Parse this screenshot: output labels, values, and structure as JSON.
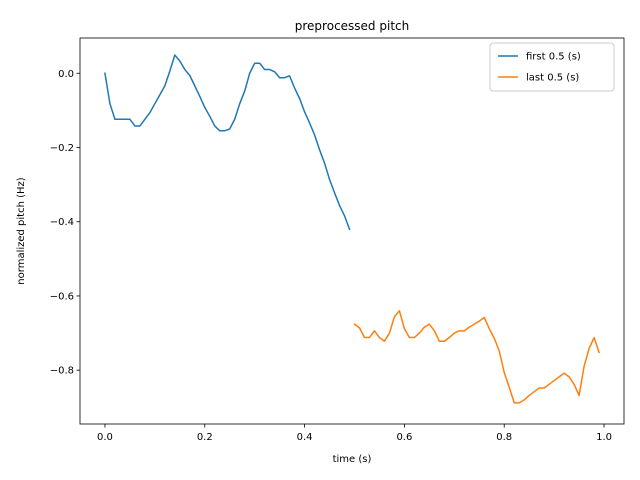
{
  "chart_data": {
    "type": "line",
    "title": "preprocessed pitch",
    "xlabel": "time (s)",
    "ylabel": "normalized pitch (Hz)",
    "xlim": [
      -0.05,
      1.04
    ],
    "ylim": [
      -0.945,
      0.095
    ],
    "xticks": [
      0.0,
      0.2,
      0.4,
      0.6,
      0.8,
      1.0
    ],
    "xtick_labels": [
      "0.0",
      "0.2",
      "0.4",
      "0.6",
      "0.8",
      "1.0"
    ],
    "yticks": [
      0.0,
      -0.2,
      -0.4,
      -0.6,
      -0.8
    ],
    "ytick_labels": [
      "0.0",
      "−0.2",
      "−0.4",
      "−0.6",
      "−0.8"
    ],
    "grid": false,
    "legend_position": "top-right",
    "series": [
      {
        "name": "first 0.5 (s)",
        "color": "#1f77b4",
        "x": [
          0.0,
          0.01,
          0.02,
          0.03,
          0.04,
          0.05,
          0.06,
          0.07,
          0.08,
          0.09,
          0.1,
          0.11,
          0.12,
          0.13,
          0.14,
          0.15,
          0.16,
          0.17,
          0.18,
          0.19,
          0.2,
          0.21,
          0.22,
          0.23,
          0.24,
          0.25,
          0.26,
          0.27,
          0.28,
          0.29,
          0.3,
          0.31,
          0.32,
          0.33,
          0.34,
          0.35,
          0.36,
          0.37,
          0.38,
          0.39,
          0.4,
          0.41,
          0.42,
          0.43,
          0.44,
          0.45,
          0.46,
          0.47,
          0.48,
          0.49
        ],
        "y": [
          0.0,
          -0.082,
          -0.124,
          -0.124,
          -0.124,
          -0.124,
          -0.142,
          -0.142,
          -0.124,
          -0.106,
          -0.082,
          -0.058,
          -0.034,
          0.006,
          0.049,
          0.033,
          0.01,
          -0.006,
          -0.034,
          -0.062,
          -0.092,
          -0.116,
          -0.142,
          -0.155,
          -0.155,
          -0.15,
          -0.124,
          -0.082,
          -0.048,
          0.0,
          0.027,
          0.027,
          0.01,
          0.01,
          0.004,
          -0.012,
          -0.012,
          -0.007,
          -0.04,
          -0.068,
          -0.104,
          -0.134,
          -0.166,
          -0.206,
          -0.242,
          -0.286,
          -0.322,
          -0.356,
          -0.384,
          -0.42
        ]
      },
      {
        "name": "last 0.5 (s)",
        "color": "#ff7f0e",
        "x": [
          0.5,
          0.51,
          0.52,
          0.53,
          0.54,
          0.55,
          0.56,
          0.57,
          0.58,
          0.59,
          0.6,
          0.61,
          0.62,
          0.63,
          0.64,
          0.65,
          0.66,
          0.67,
          0.68,
          0.69,
          0.7,
          0.71,
          0.72,
          0.73,
          0.74,
          0.75,
          0.76,
          0.77,
          0.78,
          0.79,
          0.8,
          0.81,
          0.82,
          0.83,
          0.84,
          0.85,
          0.86,
          0.87,
          0.88,
          0.89,
          0.9,
          0.91,
          0.92,
          0.93,
          0.94,
          0.95,
          0.96,
          0.97,
          0.98,
          0.99
        ],
        "y": [
          -0.676,
          -0.686,
          -0.712,
          -0.712,
          -0.694,
          -0.712,
          -0.722,
          -0.7,
          -0.656,
          -0.64,
          -0.688,
          -0.712,
          -0.712,
          -0.7,
          -0.684,
          -0.676,
          -0.694,
          -0.722,
          -0.722,
          -0.712,
          -0.7,
          -0.694,
          -0.694,
          -0.684,
          -0.676,
          -0.668,
          -0.658,
          -0.688,
          -0.714,
          -0.748,
          -0.806,
          -0.846,
          -0.888,
          -0.888,
          -0.88,
          -0.868,
          -0.858,
          -0.848,
          -0.848,
          -0.838,
          -0.828,
          -0.818,
          -0.808,
          -0.818,
          -0.838,
          -0.868,
          -0.79,
          -0.742,
          -0.712,
          -0.752
        ]
      }
    ]
  }
}
